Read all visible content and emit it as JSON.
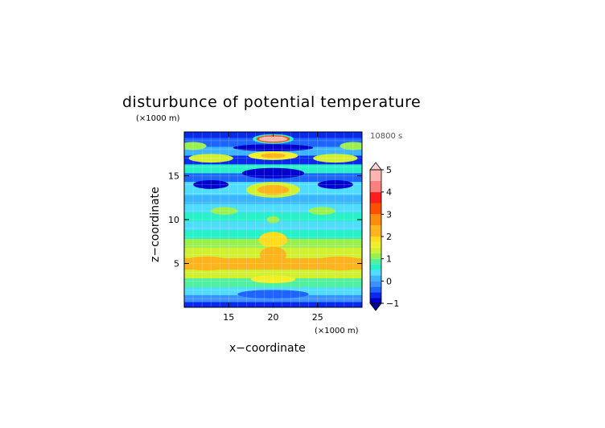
{
  "chart_data": {
    "type": "heatmap",
    "title": "disturbunce of potential temperature",
    "xlabel": "x−coordinate",
    "ylabel": "z−coordinate",
    "x_unit": "(×1000 m)",
    "y_unit": "(×1000 m)",
    "time_label": "10800 s",
    "xlim": [
      10,
      30
    ],
    "ylim": [
      0,
      20
    ],
    "x_ticks": [
      15,
      20,
      25
    ],
    "y_ticks": [
      5,
      10,
      15
    ],
    "grid": true,
    "colorbar": {
      "min": -1,
      "max": 5,
      "tick_values": [
        5,
        4,
        3,
        2,
        1,
        0,
        -1
      ],
      "tick_labels": [
        "5",
        "4",
        "3",
        "2",
        "1",
        "0",
        "−1"
      ],
      "levels": [
        -1,
        -0.75,
        -0.5,
        -0.25,
        0,
        0.25,
        0.5,
        0.75,
        1,
        1.25,
        1.5,
        1.75,
        2,
        2.5,
        3,
        3.5,
        4,
        4.5,
        5
      ],
      "colors": [
        "#0000cc",
        "#0a28ee",
        "#1e64ff",
        "#3c90ff",
        "#3cb4ff",
        "#50dcff",
        "#28f0c8",
        "#50f0a0",
        "#9bf050",
        "#d2f032",
        "#f0f028",
        "#ffdc1e",
        "#ffb41e",
        "#ff8c0a",
        "#ff5000",
        "#ff1e1e",
        "#ff8080",
        "#ffb4b4"
      ]
    },
    "layers": [
      {
        "z_range": [
          0.0,
          0.6
        ],
        "value": -0.7
      },
      {
        "z_range": [
          0.6,
          1.4
        ],
        "value": -0.1
      },
      {
        "z_range": [
          1.4,
          2.3
        ],
        "value": 0.3
      },
      {
        "z_range": [
          2.3,
          3.3
        ],
        "value": 0.9
      },
      {
        "z_range": [
          3.3,
          4.3
        ],
        "value": 1.3
      },
      {
        "z_range": [
          4.3,
          5.6
        ],
        "value": 2.1
      },
      {
        "z_range": [
          5.6,
          6.8
        ],
        "value": 1.4
      },
      {
        "z_range": [
          6.8,
          7.8
        ],
        "value": 1.0
      },
      {
        "z_range": [
          7.8,
          8.8
        ],
        "value": 0.6
      },
      {
        "z_range": [
          8.8,
          9.8
        ],
        "value": 0.3
      },
      {
        "z_range": [
          9.8,
          10.8
        ],
        "value": 0.6
      },
      {
        "z_range": [
          10.8,
          11.8
        ],
        "value": 0.3
      },
      {
        "z_range": [
          11.8,
          12.8
        ],
        "value": 0.0
      },
      {
        "z_range": [
          12.8,
          14.3
        ],
        "value": 0.4
      },
      {
        "z_range": [
          14.3,
          15.3
        ],
        "value": -0.4
      },
      {
        "z_range": [
          15.3,
          16.3
        ],
        "value": 0.6
      },
      {
        "z_range": [
          16.3,
          17.3
        ],
        "value": -0.7
      },
      {
        "z_range": [
          17.3,
          18.3
        ],
        "value": 0.2
      },
      {
        "z_range": [
          18.3,
          19.3
        ],
        "value": -0.3
      },
      {
        "z_range": [
          19.3,
          20.0
        ],
        "value": -0.7
      }
    ],
    "features": [
      {
        "cx": 20.0,
        "cz": 19.2,
        "rx": 2.3,
        "rz": 0.55,
        "value": 0.7
      },
      {
        "cx": 20.0,
        "cz": 19.2,
        "rx": 1.9,
        "rz": 0.42,
        "value": 3.2
      },
      {
        "cx": 20.0,
        "cz": 19.2,
        "rx": 1.6,
        "rz": 0.3,
        "value": 4.8
      },
      {
        "cx": 20.0,
        "cz": 17.3,
        "rx": 2.8,
        "rz": 0.5,
        "value": 1.6
      },
      {
        "cx": 20.0,
        "cz": 17.3,
        "rx": 1.4,
        "rz": 0.28,
        "value": 2.3
      },
      {
        "cx": 20.0,
        "cz": 13.4,
        "rx": 3.0,
        "rz": 0.9,
        "value": 1.4
      },
      {
        "cx": 20.0,
        "cz": 13.4,
        "rx": 1.8,
        "rz": 0.55,
        "value": 2.2
      },
      {
        "cx": 20.0,
        "cz": 15.3,
        "rx": 3.5,
        "rz": 0.6,
        "value": -0.9
      },
      {
        "cx": 20.0,
        "cz": 18.2,
        "rx": 4.5,
        "rz": 0.4,
        "value": -0.9
      },
      {
        "cx": 13.0,
        "cz": 17.0,
        "rx": 2.5,
        "rz": 0.5,
        "value": 1.4
      },
      {
        "cx": 27.0,
        "cz": 17.0,
        "rx": 2.5,
        "rz": 0.5,
        "value": 1.4
      },
      {
        "cx": 11.0,
        "cz": 18.4,
        "rx": 1.5,
        "rz": 0.45,
        "value": 1.1
      },
      {
        "cx": 29.0,
        "cz": 18.4,
        "rx": 1.5,
        "rz": 0.45,
        "value": 1.1
      },
      {
        "cx": 13.0,
        "cz": 14.0,
        "rx": 2.0,
        "rz": 0.5,
        "value": -0.9
      },
      {
        "cx": 27.0,
        "cz": 14.0,
        "rx": 2.0,
        "rz": 0.5,
        "value": -0.9
      },
      {
        "cx": 20.0,
        "cz": 10.0,
        "rx": 0.7,
        "rz": 0.4,
        "value": 1.2
      },
      {
        "cx": 20.0,
        "cz": 7.7,
        "rx": 1.6,
        "rz": 0.9,
        "value": 1.8
      },
      {
        "cx": 20.0,
        "cz": 6.0,
        "rx": 1.5,
        "rz": 0.9,
        "value": 2.0
      },
      {
        "cx": 12.5,
        "cz": 5.0,
        "rx": 3.0,
        "rz": 0.8,
        "value": 2.4
      },
      {
        "cx": 27.5,
        "cz": 5.0,
        "rx": 3.0,
        "rz": 0.8,
        "value": 2.4
      },
      {
        "cx": 20.0,
        "cz": 3.2,
        "rx": 2.5,
        "rz": 0.45,
        "value": 1.7
      },
      {
        "cx": 20.0,
        "cz": 1.5,
        "rx": 4.0,
        "rz": 0.5,
        "value": -0.5
      },
      {
        "cx": 14.5,
        "cz": 11.0,
        "rx": 1.5,
        "rz": 0.45,
        "value": 1.0
      },
      {
        "cx": 25.5,
        "cz": 11.0,
        "rx": 1.5,
        "rz": 0.45,
        "value": 1.0
      }
    ]
  }
}
